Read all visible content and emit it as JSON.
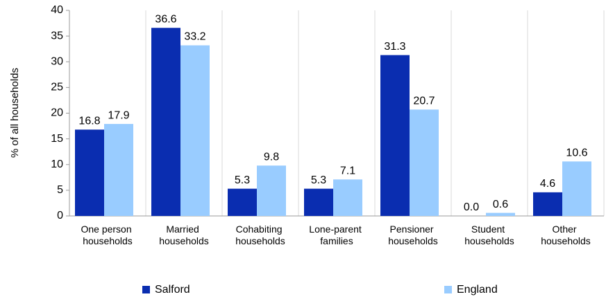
{
  "chart_data": {
    "type": "bar",
    "ylabel": "% of all households",
    "categories": [
      "One person households",
      "Married households",
      "Cohabiting households",
      "Lone-parent families",
      "Pensioner households",
      "Student households",
      "Other households"
    ],
    "series": [
      {
        "name": "Salford",
        "color": "#0a2db0",
        "values": [
          16.8,
          36.6,
          5.3,
          5.3,
          31.3,
          0,
          4.6
        ],
        "value_labels": [
          "16.8",
          "36.6",
          "5.3",
          "5.3",
          "31.3",
          "0.0",
          "4.6"
        ]
      },
      {
        "name": "England",
        "color": "#99ccff",
        "values": [
          17.9,
          33.2,
          9.8,
          7.1,
          20.7,
          0.6,
          10.6
        ],
        "value_labels": [
          "17.9",
          "33.2",
          "9.8",
          "7.1",
          "20.7",
          "0.6",
          "10.6"
        ]
      }
    ],
    "ylim": [
      0,
      40
    ],
    "yticks": [
      0,
      5,
      10,
      15,
      20,
      25,
      30,
      35,
      40
    ],
    "legend": "bottom"
  }
}
